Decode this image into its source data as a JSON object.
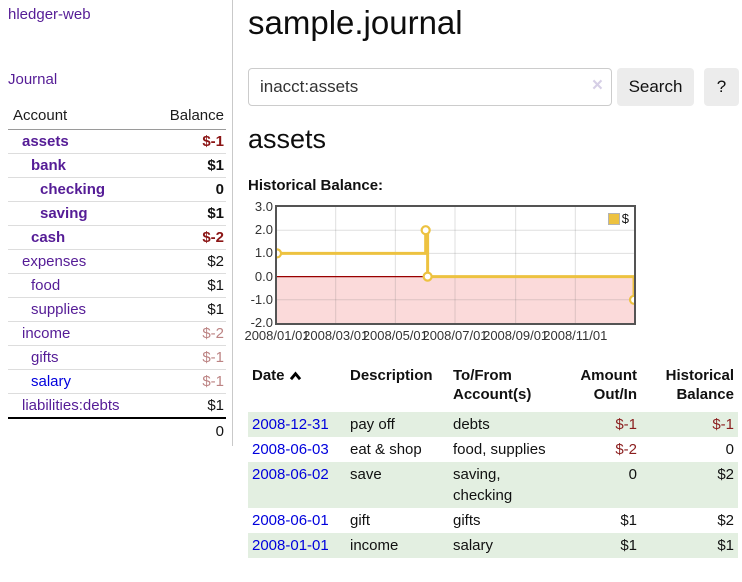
{
  "app": {
    "brand": "hledger-web",
    "nav_journal": "Journal"
  },
  "sidebar": {
    "accounts_header": {
      "account": "Account",
      "balance": "Balance"
    },
    "accounts": [
      {
        "name": "assets",
        "balance": "$-1",
        "indent": 0,
        "bold": true,
        "balance_style": "neg-strong",
        "link_style": "purple"
      },
      {
        "name": "bank",
        "balance": "$1",
        "indent": 1,
        "bold": true,
        "balance_style": "pos",
        "link_style": "purple"
      },
      {
        "name": "checking",
        "balance": "0",
        "indent": 2,
        "bold": true,
        "balance_style": "pos",
        "link_style": "purple"
      },
      {
        "name": "saving",
        "balance": "$1",
        "indent": 2,
        "bold": true,
        "balance_style": "pos",
        "link_style": "purple"
      },
      {
        "name": "cash",
        "balance": "$-2",
        "indent": 1,
        "bold": true,
        "balance_style": "neg-strong",
        "link_style": "purple"
      },
      {
        "name": "expenses",
        "balance": "$2",
        "indent": 0,
        "bold": false,
        "balance_style": "pos",
        "link_style": "purple"
      },
      {
        "name": "food",
        "balance": "$1",
        "indent": 1,
        "bold": false,
        "balance_style": "pos",
        "link_style": "purple"
      },
      {
        "name": "supplies",
        "balance": "$1",
        "indent": 1,
        "bold": false,
        "balance_style": "pos",
        "link_style": "purple"
      },
      {
        "name": "income",
        "balance": "$-2",
        "indent": 0,
        "bold": false,
        "balance_style": "neg-muted",
        "link_style": "purple"
      },
      {
        "name": "gifts",
        "balance": "$-1",
        "indent": 1,
        "bold": false,
        "balance_style": "neg-muted",
        "link_style": "purple"
      },
      {
        "name": "salary",
        "balance": "$-1",
        "indent": 1,
        "bold": false,
        "balance_style": "neg-muted",
        "link_style": "blue"
      },
      {
        "name": "liabilities:debts",
        "balance": "$1",
        "indent": 0,
        "bold": false,
        "balance_style": "pos",
        "link_style": "purple"
      }
    ],
    "total": "0"
  },
  "header": {
    "title": "sample.journal"
  },
  "search": {
    "value": "inacct:assets",
    "clear_icon": "×",
    "search_button": "Search",
    "help_button": "?"
  },
  "section": {
    "title": "assets",
    "chart_title": "Historical Balance:"
  },
  "chart_data": {
    "type": "line",
    "step": true,
    "title": "Historical Balance:",
    "legend": {
      "label": "$",
      "position": "top-right"
    },
    "series": [
      {
        "name": "$",
        "points": [
          {
            "date": "2008-01-01",
            "value": 1
          },
          {
            "date": "2008-06-01",
            "value": 2
          },
          {
            "date": "2008-06-03",
            "value": 0
          },
          {
            "date": "2008-12-31",
            "value": -1
          }
        ]
      }
    ],
    "x_range": {
      "start": "2008-01-01",
      "end": "2008-12-31"
    },
    "ylim": [
      -2,
      3
    ],
    "yticks": [
      3.0,
      2.0,
      1.0,
      0.0,
      -1.0,
      -2.0
    ],
    "ytick_labels": [
      "3.0",
      "2.0",
      "1.0",
      "0.0",
      "-1.0",
      "-2.0"
    ],
    "xticks": [
      {
        "label": "2008/01/01",
        "date": "2008-01-01"
      },
      {
        "label": "2008/03/01",
        "date": "2008-03-01"
      },
      {
        "label": "2008/05/01",
        "date": "2008-05-01"
      },
      {
        "label": "2008/07/01",
        "date": "2008-07-01"
      },
      {
        "label": "2008/09/01",
        "date": "2008-09-01"
      },
      {
        "label": "2008/11/01",
        "date": "2008-11-01"
      }
    ],
    "grid": true,
    "colors": {
      "line": "#edc240",
      "marker_fill": "#ffffff",
      "negative_region": "#fbdada",
      "zero_line": "#990000",
      "grid_line": "#dcdcdc",
      "border": "#545454"
    }
  },
  "register": {
    "headers": {
      "date": "Date",
      "sort_icon": "chevron-up",
      "description": "Description",
      "accounts": "To/From Account(s)",
      "amount": "Amount Out/In",
      "balance": "Historical Balance"
    },
    "rows": [
      {
        "date": "2008-12-31",
        "description": "pay off",
        "accounts": "debts",
        "amount": "$-1",
        "amount_neg": true,
        "balance": "$-1",
        "balance_neg": true
      },
      {
        "date": "2008-06-03",
        "description": "eat & shop",
        "accounts": "food, supplies",
        "amount": "$-2",
        "amount_neg": true,
        "balance": "0",
        "balance_neg": false
      },
      {
        "date": "2008-06-02",
        "description": "save",
        "accounts": "saving, checking",
        "amount": "0",
        "amount_neg": false,
        "balance": "$2",
        "balance_neg": false
      },
      {
        "date": "2008-06-01",
        "description": "gift",
        "accounts": "gifts",
        "amount": "$1",
        "amount_neg": false,
        "balance": "$2",
        "balance_neg": false
      },
      {
        "date": "2008-01-01",
        "description": "income",
        "accounts": "salary",
        "amount": "$1",
        "amount_neg": false,
        "balance": "$1",
        "balance_neg": false
      }
    ]
  }
}
